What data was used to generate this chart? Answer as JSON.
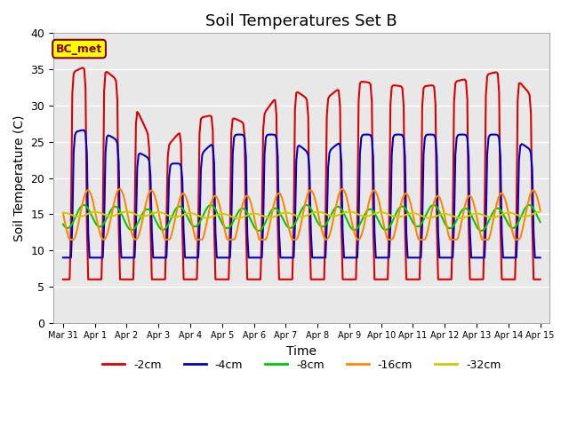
{
  "title": "Soil Temperatures Set B",
  "xlabel": "Time",
  "ylabel": "Soil Temperature (C)",
  "ylim": [
    0,
    40
  ],
  "background_color": "#e8e8e8",
  "fig_background": "#ffffff",
  "grid_color": "#ffffff",
  "annotation_text": "BC_met",
  "annotation_bg": "#ffff00",
  "annotation_border": "#8B0000",
  "series": {
    "-2cm": {
      "color": "#dd0000",
      "lw": 1.5
    },
    "-4cm": {
      "color": "#0000cc",
      "lw": 1.5
    },
    "-8cm": {
      "color": "#00cc00",
      "lw": 1.5
    },
    "-16cm": {
      "color": "#ff8800",
      "lw": 1.5
    },
    "-32cm": {
      "color": "#cccc00",
      "lw": 1.5
    }
  },
  "xtick_labels": [
    "Mar 31",
    "Apr 1",
    "Apr 2",
    "Apr 3",
    "Apr 4",
    "Apr 5",
    "Apr 6",
    "Apr 7",
    "Apr 8",
    "Apr 9",
    "Apr 10",
    "Apr 11",
    "Apr 12",
    "Apr 13",
    "Apr 14",
    "Apr 15"
  ],
  "ytick_values": [
    0,
    5,
    10,
    15,
    20,
    25,
    30,
    35,
    40
  ],
  "legend_labels": [
    "-2cm",
    "-4cm",
    "-8cm",
    "-16cm",
    "-32cm"
  ],
  "legend_colors": [
    "#dd0000",
    "#0000cc",
    "#00cc00",
    "#ff8800",
    "#cccc00"
  ]
}
